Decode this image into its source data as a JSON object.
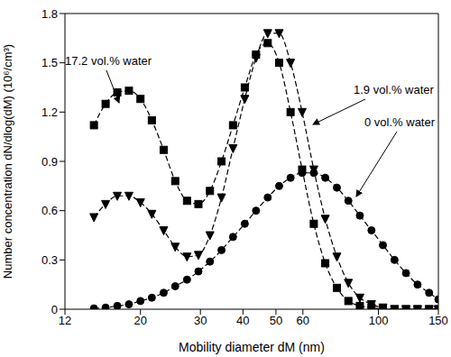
{
  "chart_data": {
    "type": "line",
    "x_label": "Mobility diameter dM (nm)",
    "y_label": "Number concentration dN/dlog(dM) (10⁶/cm³)",
    "log": "x",
    "grid": false,
    "line_style": "dashed",
    "xlim": [
      12,
      150
    ],
    "xticks": [
      12,
      20,
      30,
      40,
      50,
      60,
      100,
      150
    ],
    "ylim": [
      0,
      1.8
    ],
    "yticks": [
      0,
      0.3,
      0.6,
      0.9,
      1.2,
      1.5,
      1.8
    ],
    "x": [
      14.6,
      15.8,
      17.1,
      18.5,
      20,
      21.6,
      23.4,
      25.3,
      27.4,
      29.6,
      32,
      34.6,
      37.4,
      40.5,
      43.7,
      47.3,
      51.1,
      55.2,
      59.7,
      64.6,
      69.8,
      75.5,
      81.6,
      88.2,
      95.4,
      103.1,
      111.5,
      120.5,
      130.3,
      140.9,
      150
    ],
    "series": [
      {
        "name": "17.2 vol.% water",
        "color": "#000000",
        "marker": "square",
        "values": [
          1.12,
          1.25,
          1.32,
          1.33,
          1.28,
          1.15,
          0.97,
          0.78,
          0.66,
          0.64,
          0.72,
          0.9,
          1.12,
          1.35,
          1.55,
          1.62,
          1.5,
          1.2,
          0.85,
          0.52,
          0.28,
          0.13,
          0.05,
          0.02,
          0.01,
          0,
          0,
          0,
          0,
          0,
          0
        ]
      },
      {
        "name": "1.9 vol.% water",
        "color": "#000000",
        "marker": "triangle-down",
        "values": [
          0.56,
          0.64,
          0.69,
          0.69,
          0.65,
          0.58,
          0.48,
          0.38,
          0.32,
          0.33,
          0.45,
          0.68,
          0.98,
          1.28,
          1.53,
          1.68,
          1.68,
          1.5,
          1.2,
          0.85,
          0.55,
          0.32,
          0.16,
          0.07,
          0.03,
          0.01,
          0,
          0,
          0,
          0,
          0
        ]
      },
      {
        "name": "0 vol.% water",
        "color": "#000000",
        "marker": "circle",
        "values": [
          0.005,
          0.01,
          0.02,
          0.03,
          0.05,
          0.07,
          0.1,
          0.14,
          0.18,
          0.23,
          0.29,
          0.36,
          0.44,
          0.52,
          0.6,
          0.68,
          0.75,
          0.8,
          0.83,
          0.83,
          0.8,
          0.74,
          0.66,
          0.57,
          0.48,
          0.39,
          0.3,
          0.22,
          0.15,
          0.1,
          0.06
        ]
      }
    ]
  }
}
